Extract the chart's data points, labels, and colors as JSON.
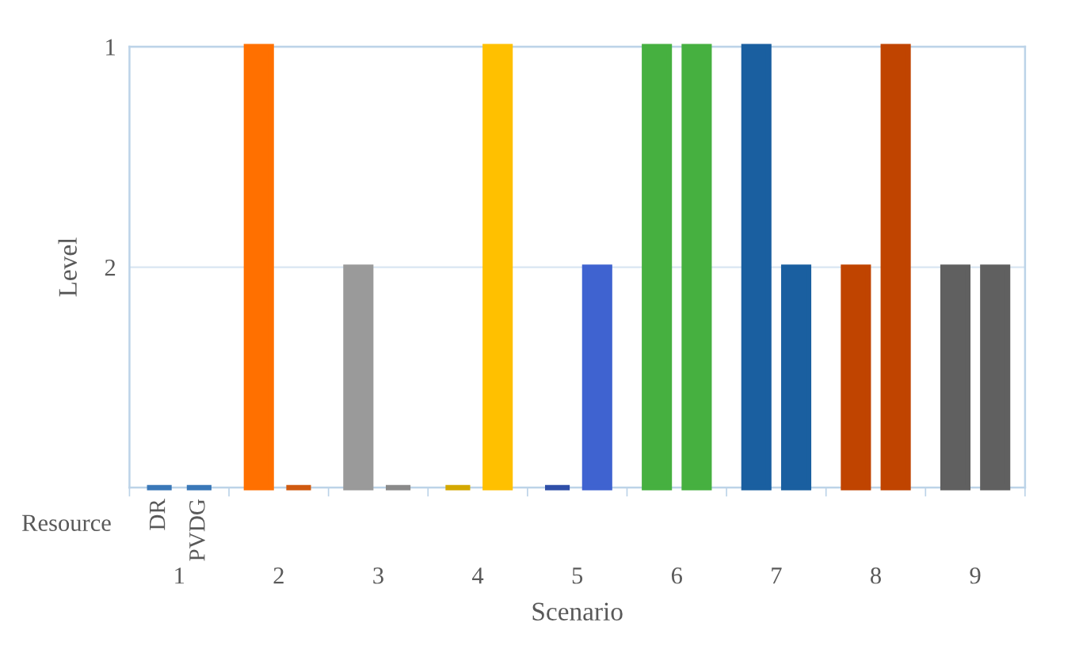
{
  "chart_data": {
    "type": "bar",
    "xlabel": "Scenario",
    "ylabel": "Level",
    "legend_title": "Resource",
    "categories": [
      "1",
      "2",
      "3",
      "4",
      "5",
      "6",
      "7",
      "8",
      "9"
    ],
    "series": [
      {
        "name": "DR",
        "colors": [
          "#3a78b8",
          "#ff7000",
          "#9a9a9a",
          "#d4a800",
          "#2f4fa8",
          "#46b040",
          "#1a5fa0",
          "#c04400",
          "#606060"
        ],
        "base": [
          3,
          3,
          3,
          3,
          3,
          3,
          3,
          3,
          3
        ],
        "values": [
          0,
          -2,
          -1,
          0,
          0,
          -2,
          -2,
          -1,
          -1
        ]
      },
      {
        "name": "PVDG",
        "colors": [
          "#3a78b8",
          "#d05a10",
          "#8a8a8a",
          "#ffc000",
          "#3f63d0",
          "#46b040",
          "#1a5fa0",
          "#c04400",
          "#606060"
        ],
        "base": [
          3,
          3,
          3,
          3,
          3,
          3,
          3,
          3,
          3
        ],
        "values": [
          0,
          0,
          0,
          -2,
          -1,
          -2,
          -1,
          -2,
          -1
        ]
      }
    ],
    "ylim": [
      3,
      1
    ],
    "yticks": [
      1,
      2
    ],
    "grid": "y"
  }
}
